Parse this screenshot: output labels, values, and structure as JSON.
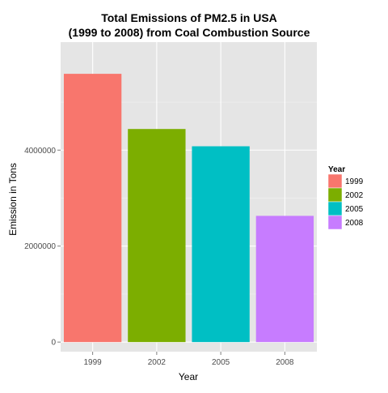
{
  "chart_data": {
    "type": "bar",
    "title_lines": [
      "Total Emissions of PM2.5 in USA",
      "(1999 to 2008) from Coal Combustion Source"
    ],
    "xlabel": "Year",
    "ylabel": "Emission in Tons",
    "categories": [
      "1999",
      "2002",
      "2005",
      "2008"
    ],
    "values": [
      5590000,
      4440000,
      4080000,
      2630000
    ],
    "colors": [
      "#F8766D",
      "#7CAE00",
      "#00BFC4",
      "#C77CFF"
    ],
    "ylim": [
      -200000,
      6250000
    ],
    "yticks": [
      0,
      2000000,
      4000000
    ],
    "ytick_labels": [
      "0",
      "2000000",
      "4000000"
    ],
    "grid": true,
    "panel_background": "#E5E5E5",
    "legend": {
      "title": "Year",
      "position": "right",
      "entries": [
        "1999",
        "2002",
        "2005",
        "2008"
      ]
    }
  }
}
